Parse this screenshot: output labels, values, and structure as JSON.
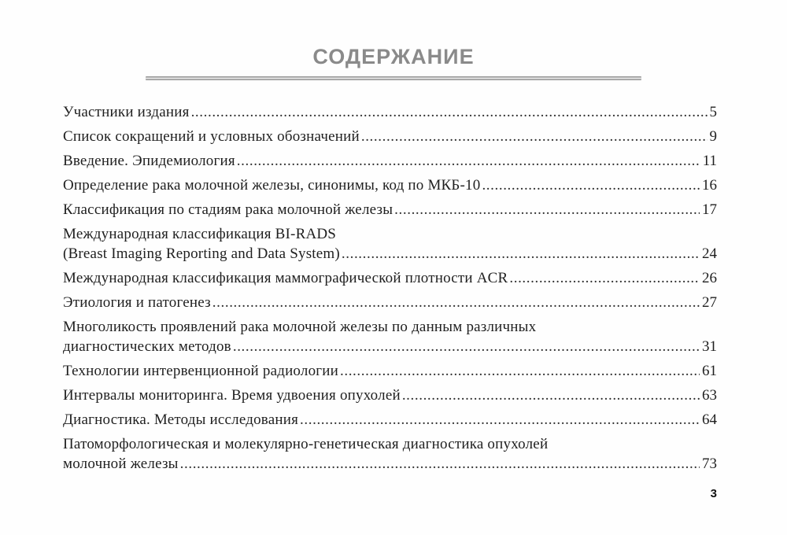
{
  "page": {
    "title": "СОДЕРЖАНИЕ",
    "page_number": "3"
  },
  "colors": {
    "title_gray": "#8a8a8a",
    "rule_gray": "#979797",
    "text": "#1f1f1f"
  },
  "toc": {
    "entries": [
      {
        "lines": [
          "Участники издания"
        ],
        "page": "5"
      },
      {
        "lines": [
          "Список сокращений и условных обозначений"
        ],
        "page": "9"
      },
      {
        "lines": [
          "Введение. Эпидемиология"
        ],
        "page": "11"
      },
      {
        "lines": [
          "Определение рака молочной железы, синонимы, код по МКБ-10"
        ],
        "page": "16"
      },
      {
        "lines": [
          "Классификация по стадиям рака молочной железы"
        ],
        "page": "17"
      },
      {
        "lines": [
          "Международная классификация BI-RADS",
          "(Breast Imaging Reporting and Data System)"
        ],
        "page": "24"
      },
      {
        "lines": [
          "Международная классификация маммографической плотности ACR"
        ],
        "page": "26"
      },
      {
        "lines": [
          "Этиология и патогенез"
        ],
        "page": "27"
      },
      {
        "lines": [
          "Многоликость проявлений рака молочной железы по данным различных",
          "диагностических методов"
        ],
        "page": "31"
      },
      {
        "lines": [
          "Технологии интервенционной радиологии"
        ],
        "page": "61"
      },
      {
        "lines": [
          "Интервалы мониторинга. Время удвоения опухолей"
        ],
        "page": "63"
      },
      {
        "lines": [
          "Диагностика. Методы исследования"
        ],
        "page": "64"
      },
      {
        "lines": [
          "Патоморфологическая и молекулярно-генетическая диагностика опухолей",
          "молочной железы"
        ],
        "page": "73"
      }
    ]
  }
}
